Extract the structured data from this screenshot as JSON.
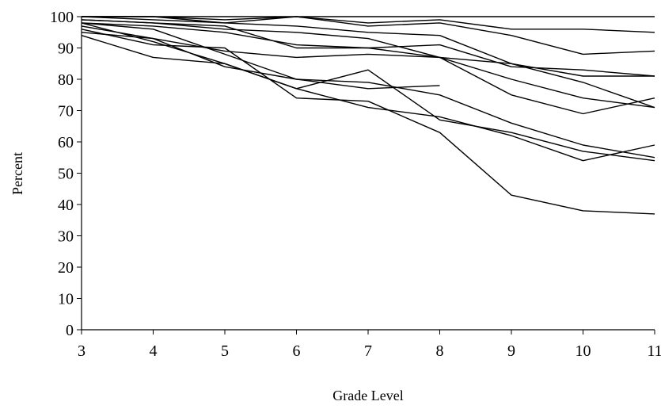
{
  "chart_data": {
    "type": "line",
    "title": "",
    "xlabel": "Grade Level",
    "ylabel": "Percent",
    "x": [
      3,
      4,
      5,
      6,
      7,
      8,
      9,
      10,
      11
    ],
    "xlim": [
      3,
      11
    ],
    "ylim": [
      0,
      100
    ],
    "xticks": [
      3,
      4,
      5,
      6,
      7,
      8,
      9,
      10,
      11
    ],
    "yticks": [
      0,
      10,
      20,
      30,
      40,
      50,
      60,
      70,
      80,
      90,
      100
    ],
    "grid": false,
    "legend": "none",
    "series": [
      {
        "values": [
          100,
          100,
          100,
          100,
          100,
          100,
          100,
          100,
          100
        ]
      },
      {
        "values": [
          100,
          100,
          99,
          100,
          98,
          99,
          96,
          96,
          95
        ]
      },
      {
        "values": [
          100,
          100,
          98,
          100,
          97,
          98,
          94,
          88,
          89
        ]
      },
      {
        "values": [
          100,
          99,
          98,
          97,
          95,
          94,
          85,
          79,
          71
        ]
      },
      {
        "values": [
          99,
          98,
          96,
          95,
          93,
          87,
          80,
          74,
          71
        ]
      },
      {
        "values": [
          98,
          97,
          95,
          91,
          90,
          91,
          84,
          83,
          81
        ]
      },
      {
        "values": [
          95,
          93,
          89,
          87,
          88,
          87,
          85,
          81,
          81
        ]
      },
      {
        "values": [
          99,
          98,
          97,
          90,
          90,
          87,
          75,
          69,
          74
        ]
      },
      {
        "values": [
          98,
          96,
          88,
          80,
          77,
          78,
          null,
          null,
          null
        ]
      },
      {
        "values": [
          97,
          93,
          84,
          80,
          79,
          75,
          66,
          59,
          55
        ]
      },
      {
        "values": [
          96,
          91,
          90,
          74,
          73,
          63,
          43,
          38,
          37
        ]
      },
      {
        "values": [
          94,
          87,
          85,
          77,
          71,
          68,
          62,
          54,
          59
        ]
      },
      {
        "values": [
          98,
          92,
          85,
          77,
          83,
          67,
          63,
          57,
          54
        ]
      }
    ]
  }
}
